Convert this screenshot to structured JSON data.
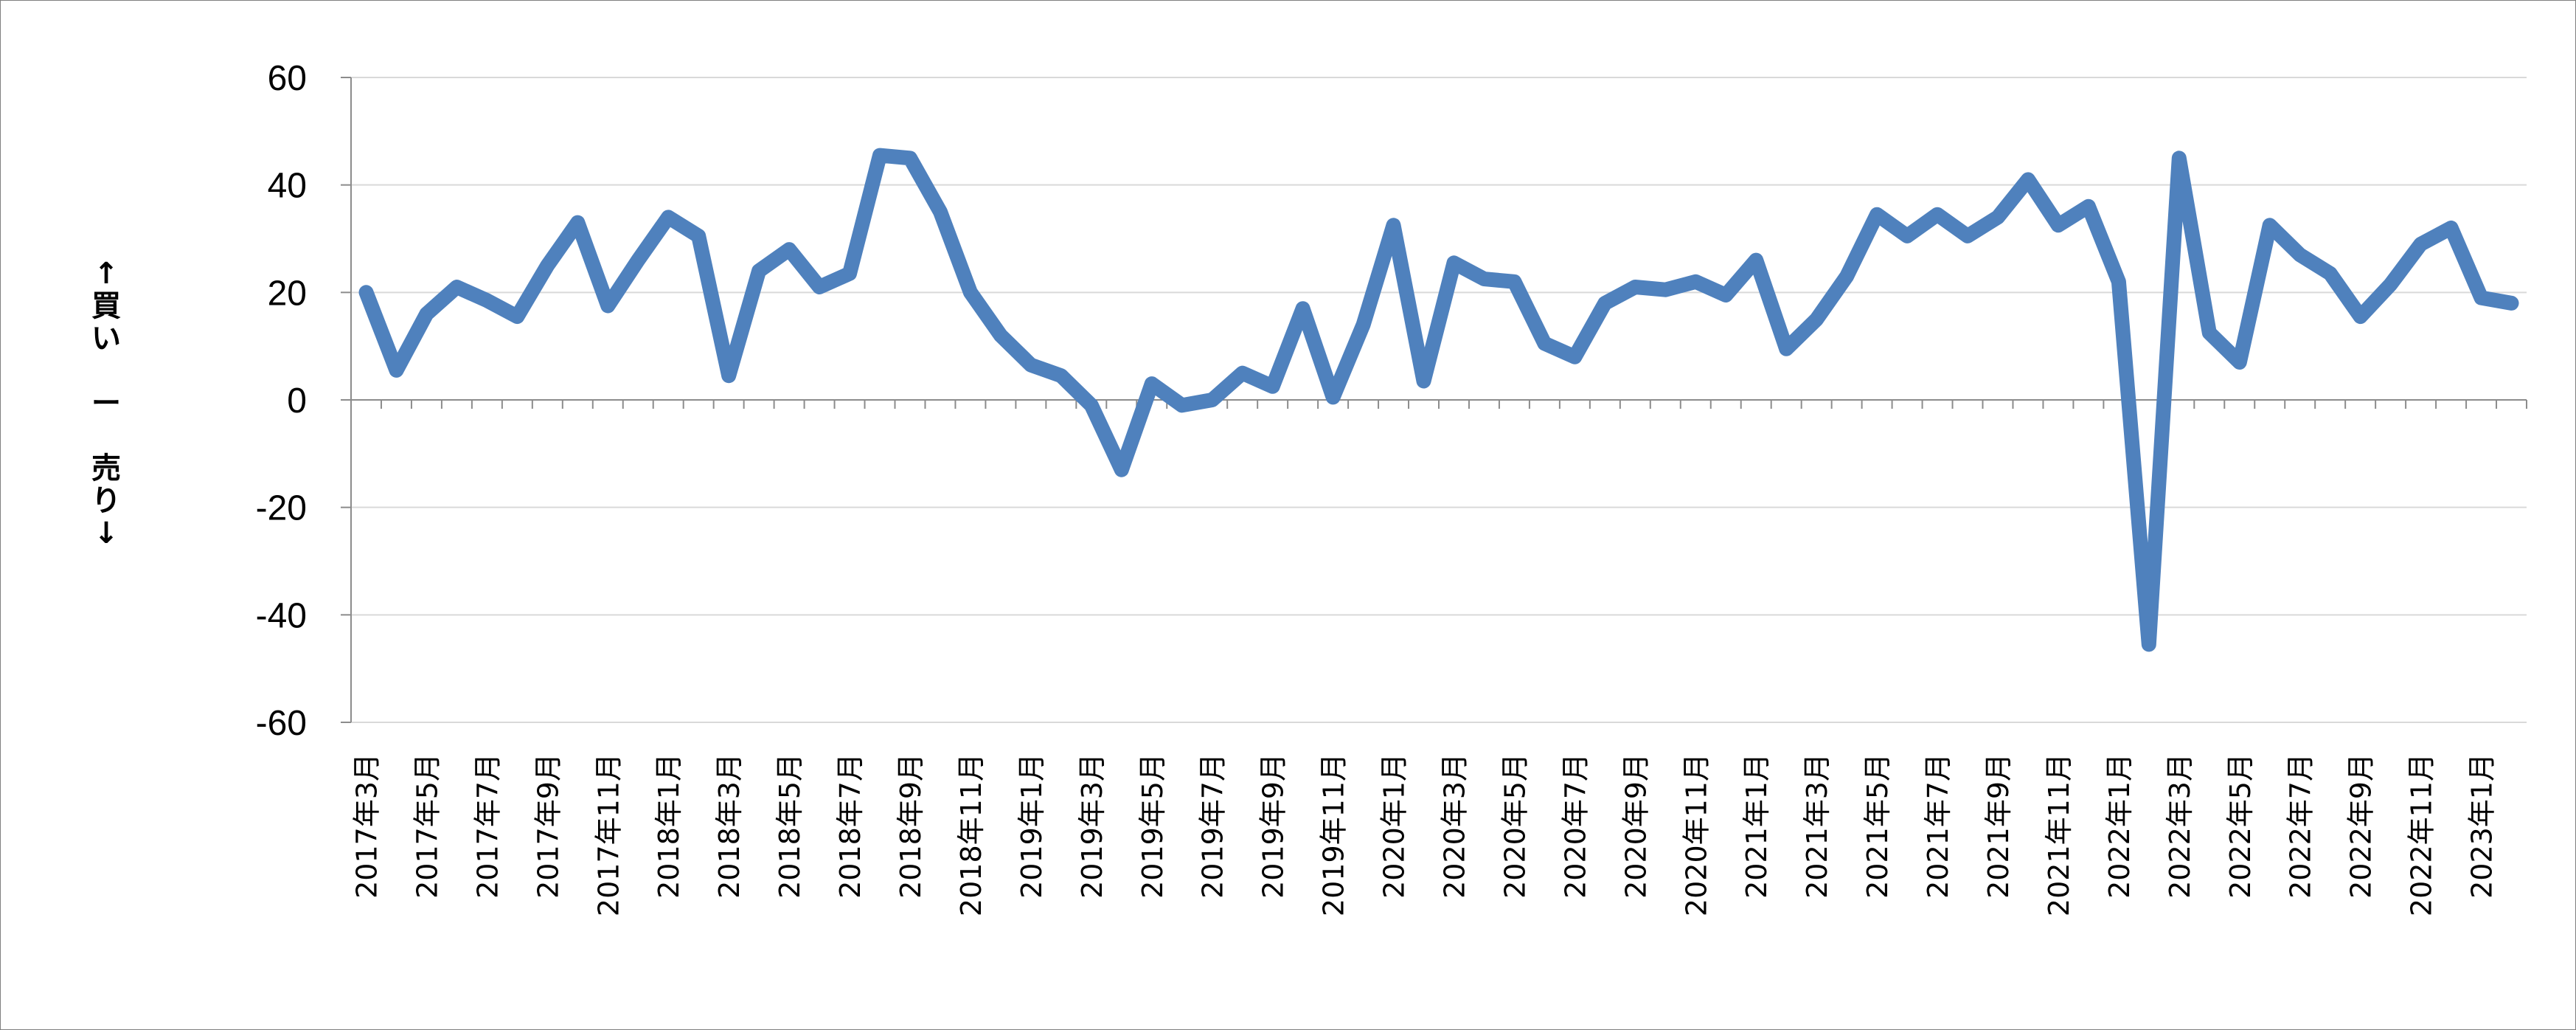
{
  "chart_data": {
    "type": "line",
    "title": "",
    "xlabel": "",
    "ylabel": "↑買い　ー　売り↓",
    "ylim": [
      -60,
      60
    ],
    "y_ticks": [
      60,
      40,
      20,
      0,
      -20,
      -40,
      -60
    ],
    "y_tick_labels": [
      "60",
      "40",
      "20",
      "0",
      "-20",
      "-40",
      "-60"
    ],
    "grid": "horizontal",
    "legend": "none",
    "line_color": "#4f81bd",
    "categories": [
      "2017年3月",
      "2017年4月",
      "2017年5月",
      "2017年6月",
      "2017年7月",
      "2017年8月",
      "2017年9月",
      "2017年10月",
      "2017年11月",
      "2017年12月",
      "2018年1月",
      "2018年2月",
      "2018年3月",
      "2018年4月",
      "2018年5月",
      "2018年6月",
      "2018年7月",
      "2018年8月",
      "2018年9月",
      "2018年10月",
      "2018年11月",
      "2018年12月",
      "2019年1月",
      "2019年2月",
      "2019年3月",
      "2019年4月",
      "2019年5月",
      "2019年6月",
      "2019年7月",
      "2019年8月",
      "2019年9月",
      "2019年10月",
      "2019年11月",
      "2019年12月",
      "2020年1月",
      "2020年2月",
      "2020年3月",
      "2020年4月",
      "2020年5月",
      "2020年6月",
      "2020年7月",
      "2020年8月",
      "2020年9月",
      "2020年10月",
      "2020年11月",
      "2020年12月",
      "2021年1月",
      "2021年2月",
      "2021年3月",
      "2021年4月",
      "2021年5月",
      "2021年6月",
      "2021年7月",
      "2021年8月",
      "2021年9月",
      "2021年10月",
      "2021年11月",
      "2021年12月",
      "2022年1月",
      "2022年2月",
      "2022年3月",
      "2022年4月",
      "2022年5月",
      "2022年6月",
      "2022年7月",
      "2022年8月",
      "2022年9月",
      "2022年10月",
      "2022年11月",
      "2022年12月",
      "2023年1月",
      "2023年2月"
    ],
    "x_tick_labels": [
      "2017年3月",
      "2017年5月",
      "2017年7月",
      "2017年9月",
      "2017年11月",
      "2018年1月",
      "2018年3月",
      "2018年5月",
      "2018年7月",
      "2018年9月",
      "2018年11月",
      "2019年1月",
      "2019年3月",
      "2019年5月",
      "2019年7月",
      "2019年9月",
      "2019年11月",
      "2020年1月",
      "2020年3月",
      "2020年5月",
      "2020年7月",
      "2020年9月",
      "2020年11月",
      "2021年1月",
      "2021年3月",
      "2021年5月",
      "2021年7月",
      "2021年9月",
      "2021年11月",
      "2022年1月",
      "2022年3月",
      "2022年5月",
      "2022年7月",
      "2022年9月",
      "2022年11月",
      "2023年1月"
    ],
    "series": [
      {
        "values": [
          20,
          5.5,
          16,
          21,
          18.5,
          15.5,
          25,
          33,
          17.5,
          26,
          34,
          30.5,
          4.5,
          24,
          28,
          21,
          23.5,
          45.5,
          45,
          35,
          20,
          12,
          6.5,
          4.5,
          -1,
          -13,
          3,
          -1,
          0,
          5,
          2.5,
          17,
          0.5,
          14,
          32.5,
          3.5,
          25.5,
          22.5,
          22,
          10.5,
          8,
          18,
          21,
          20.5,
          22,
          19.5,
          26,
          9.5,
          15,
          23,
          34.5,
          30.5,
          34.5,
          30.5,
          34,
          41,
          32.5,
          36,
          22,
          -45.5,
          45,
          12.5,
          7,
          32.5,
          27,
          23.5,
          15.5,
          21.5,
          29,
          32,
          19,
          18
        ]
      }
    ]
  }
}
